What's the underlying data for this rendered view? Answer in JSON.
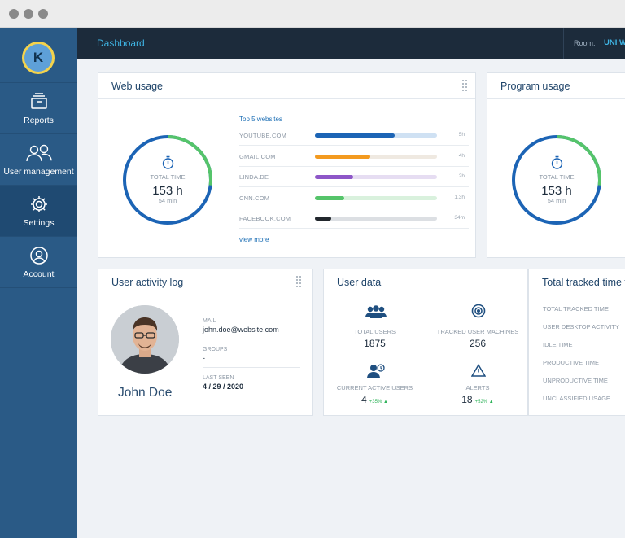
{
  "window": {
    "controls": [
      "close",
      "minimize",
      "maximize"
    ]
  },
  "user": {
    "initial": "K"
  },
  "sidebar": {
    "items": [
      {
        "label": "Reports",
        "icon": "reports-icon"
      },
      {
        "label": "User management",
        "icon": "users-icon"
      },
      {
        "label": "Settings",
        "icon": "gear-icon",
        "active": true
      },
      {
        "label": "Account",
        "icon": "account-icon"
      }
    ]
  },
  "topbar": {
    "title": "Dashboard",
    "room_label": "Room:",
    "room_value": "UNI We"
  },
  "web_usage": {
    "title": "Web usage",
    "ring": {
      "label": "TOTAL TIME",
      "value": "153 h",
      "sub": "54 min",
      "fill": 0.27
    },
    "top5_title": "Top 5 websites",
    "sites": [
      {
        "name": "YOUTUBE.COM",
        "time": "5h",
        "fill": 0.65,
        "color": "#1c64b5",
        "bg": "#cfe1f3"
      },
      {
        "name": "GMAIL.COM",
        "time": "4h",
        "fill": 0.45,
        "color": "#f39a1f",
        "bg": "#efe9e1"
      },
      {
        "name": "LINDA.DE",
        "time": "2h",
        "fill": 0.31,
        "color": "#8e57c8",
        "bg": "#e6ddf2"
      },
      {
        "name": "CNN.COM",
        "time": "1.3h",
        "fill": 0.24,
        "color": "#55c46a",
        "bg": "#d9f1dd"
      },
      {
        "name": "FACEBOOK.COM",
        "time": "34m",
        "fill": 0.13,
        "color": "#22272d",
        "bg": "#dcdfe3"
      }
    ],
    "view_more": "view more"
  },
  "program_usage": {
    "title": "Program usage",
    "ring": {
      "label": "TOTAL TIME",
      "value": "153 h",
      "sub": "54 min",
      "fill": 0.27
    }
  },
  "activity_log": {
    "title": "User activity log",
    "name": "John Doe",
    "fields": [
      {
        "label": "MAIL",
        "value": "john.doe@website.com"
      },
      {
        "label": "GROUPS",
        "value": "-"
      },
      {
        "label": "LAST SEEN",
        "value": "4 / 29 / 2020"
      }
    ]
  },
  "user_data": {
    "title": "User data",
    "cells": [
      {
        "label": "TOTAL USERS",
        "value": "1875",
        "delta": "",
        "icon": "users-group-icon"
      },
      {
        "label": "TRACKED USER MACHINES",
        "value": "256",
        "delta": "",
        "icon": "radar-icon"
      },
      {
        "label": "CURRENT ACTIVE USERS",
        "value": "4",
        "delta": "+35% ▲",
        "icon": "active-user-icon"
      },
      {
        "label": "ALERTS",
        "value": "18",
        "delta": "+52% ▲",
        "icon": "alert-icon"
      }
    ]
  },
  "total_tracked": {
    "title": "Total tracked time f",
    "rows": [
      "TOTAL TRACKED TIME",
      "USER DESKTOP ACTIVITY",
      "IDLE TIME",
      "PRODUCTIVE TIME",
      "UNPRODUCTIVE TIME",
      "UNCLASSIFIED USAGE"
    ]
  },
  "colors": {
    "sidebar": "#2a5a86",
    "topbar": "#1c2b3b",
    "accent": "#3fb6e6",
    "ring_blue": "#1c64b5",
    "ring_green": "#55c46a"
  }
}
